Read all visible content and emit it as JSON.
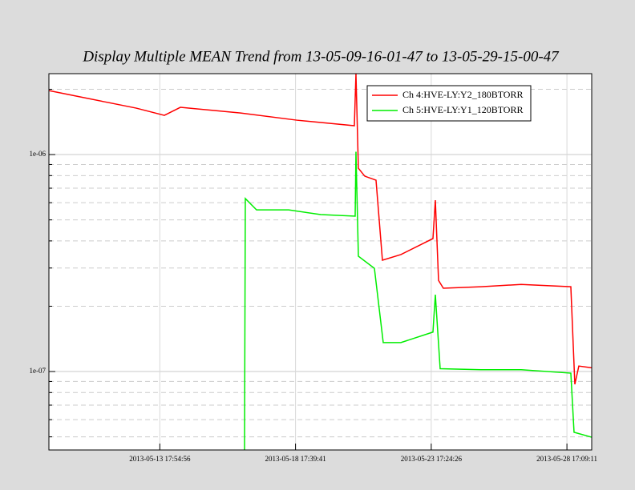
{
  "chart_data": {
    "type": "line",
    "title": "Display Multiple MEAN Trend from 13-05-09-16-01-47 to 13-05-29-15-00-47",
    "log_y": true,
    "grid": true,
    "legend": "upper right",
    "xlim": [
      "2013-05-09 16:01:47",
      "2013-05-29 15:00:47"
    ],
    "xticks": [
      "2013-05-13 17:54:56",
      "2013-05-18 17:39:41",
      "2013-05-23 17:24:26",
      "2013-05-28 17:09:11"
    ],
    "ylim": [
      4.35e-08,
      2.36e-06
    ],
    "yticks": [
      {
        "value": 1e-07,
        "label": "1e-07"
      },
      {
        "value": 1e-06,
        "label": "1e-06"
      }
    ],
    "minor_yticks": [
      5e-08,
      6e-08,
      7e-08,
      8e-08,
      9e-08,
      2e-07,
      3e-07,
      4e-07,
      5e-07,
      6e-07,
      7e-07,
      8e-07,
      9e-07,
      2e-06
    ],
    "series": [
      {
        "name": "Ch 4:HVE-LY:Y2_180BTORR",
        "color": "#ff0000",
        "x": [
          "2013-05-09 16:01:00",
          "2013-05-10 19:36:00",
          "2013-05-11 16:50:00",
          "2013-05-12 21:08:00",
          "2013-05-13 21:54:00",
          "2013-05-14 12:03:00",
          "2013-05-16 17:07:00",
          "2013-05-18 18:38:00",
          "2013-05-20 21:34:00",
          "2013-05-20 22:59:00",
          "2013-05-21 01:07:00",
          "2013-05-21 06:46:00",
          "2013-05-21 16:41:00",
          "2013-05-21 22:20:00",
          "2013-05-22 14:37:00",
          "2013-05-23 18:55:00",
          "2013-05-23 21:02:00",
          "2013-05-23 23:52:00",
          "2013-05-24 04:06:00",
          "2013-05-25 13:22:00",
          "2013-05-27 00:44:00",
          "2013-05-28 20:36:00",
          "2013-05-29 00:08:00",
          "2013-05-29 03:40:00",
          "2013-05-29 15:00:00"
        ],
        "values": [
          1.973e-06,
          1.844e-06,
          1.752e-06,
          1.637e-06,
          1.516e-06,
          1.651e-06,
          1.555e-06,
          1.441e-06,
          1.358e-06,
          2.36e-06,
          8.65e-07,
          7.95e-07,
          7.62e-07,
          3.26e-07,
          3.46e-07,
          4.1e-07,
          6.16e-07,
          2.63e-07,
          2.42e-07,
          2.46e-07,
          2.52e-07,
          2.46e-07,
          8.73e-08,
          1.06e-07,
          1.04e-07
        ]
      },
      {
        "name": "Ch 5:HVE-LY:Y1_120BTORR",
        "color": "#00ee00",
        "x": [
          "2013-05-16 20:39:00",
          "2013-05-16 21:21:00",
          "2013-05-17 07:16:00",
          "2013-05-18 11:34:00",
          "2013-05-19 15:52:00",
          "2013-05-20 22:17:00",
          "2013-05-20 22:59:00",
          "2013-05-21 01:07:00",
          "2013-05-21 15:16:00",
          "2013-05-21 23:03:00",
          "2013-05-22 14:37:00",
          "2013-05-23 18:55:00",
          "2013-05-23 21:02:00",
          "2013-05-24 01:17:00",
          "2013-05-25 13:22:00",
          "2013-05-27 00:44:00",
          "2013-05-28 20:36:00",
          "2013-05-28 23:26:00",
          "2013-05-29 15:00:00"
        ],
        "values": [
          4.35e-08,
          6.27e-07,
          5.56e-07,
          5.56e-07,
          5.29e-07,
          5.2e-07,
          1.03e-06,
          3.4e-07,
          2.99e-07,
          1.36e-07,
          1.36e-07,
          1.52e-07,
          2.26e-07,
          1.03e-07,
          1.02e-07,
          1.02e-07,
          9.83e-08,
          5.25e-08,
          4.98e-08
        ]
      }
    ]
  }
}
